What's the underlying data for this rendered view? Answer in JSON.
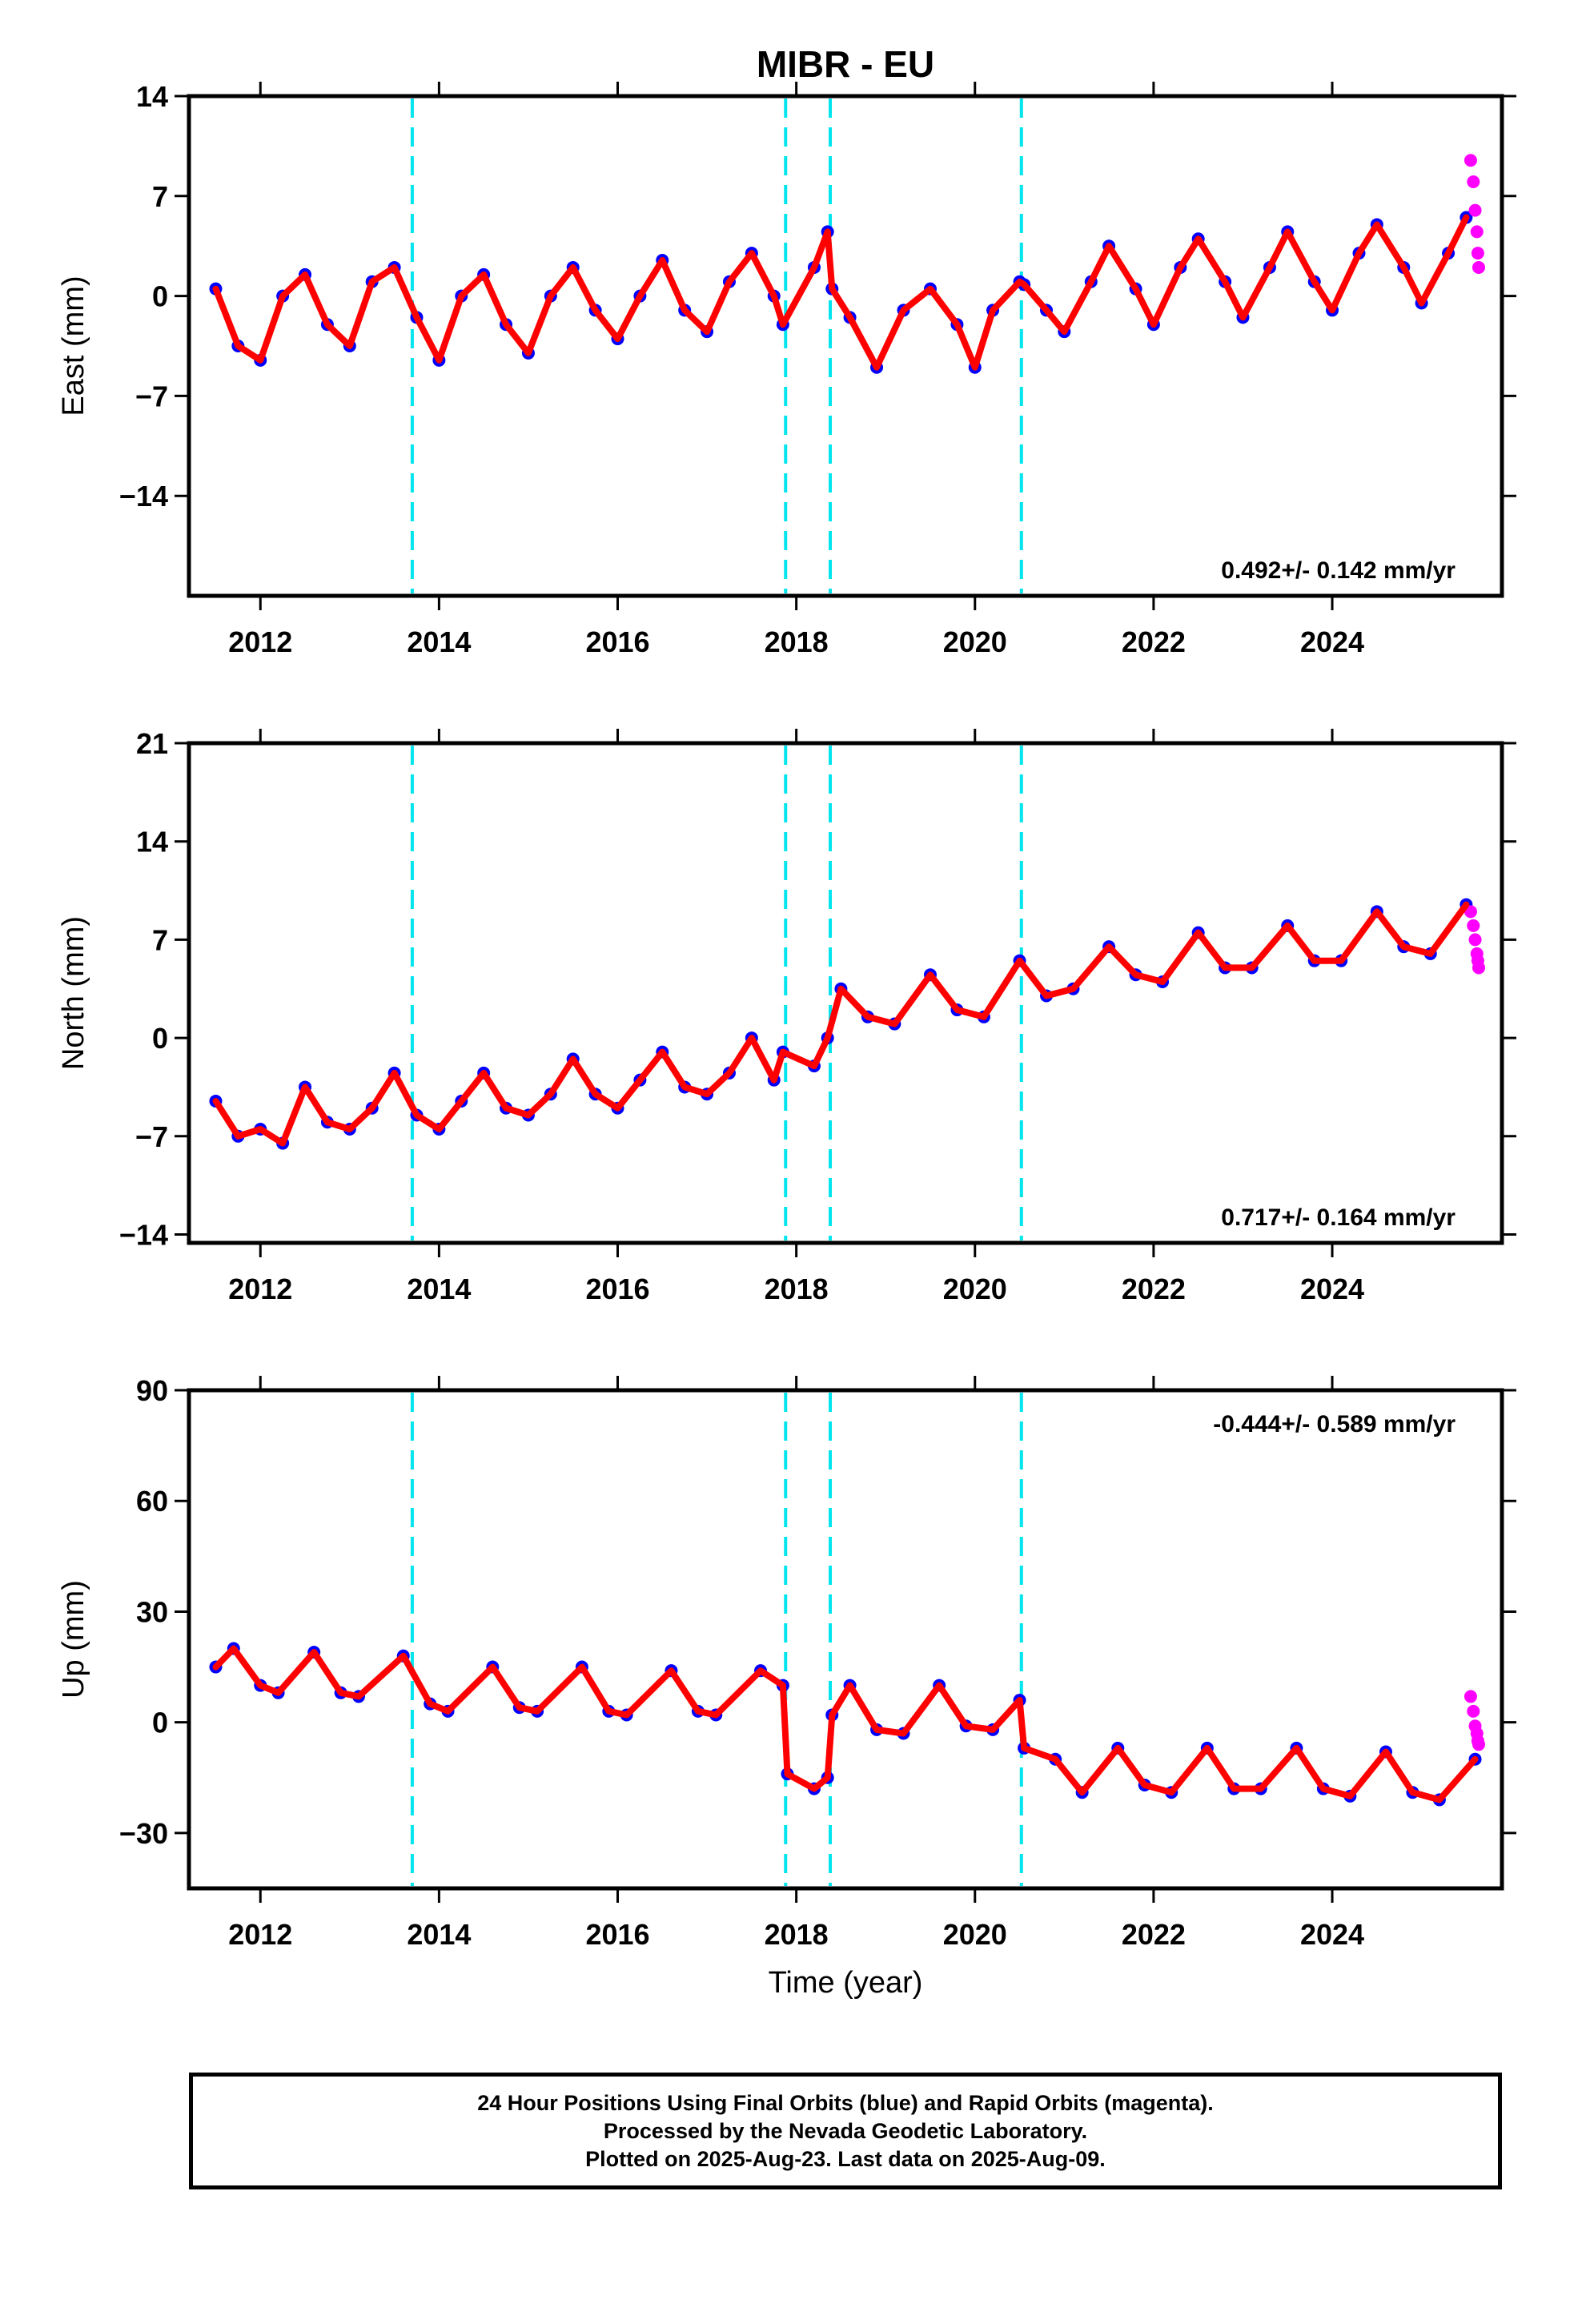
{
  "title": "MIBR - EU",
  "xlabel": "Time (year)",
  "colors": {
    "final_orbits": "#0000ff",
    "rapid_orbits": "#ff00ff",
    "model_fit": "#ff0000",
    "breaks": "#00e5ee"
  },
  "chart_data": [
    {
      "type": "scatter",
      "component": "East",
      "ylabel": "East (mm)",
      "ylim": [
        -21,
        14
      ],
      "yticks": [
        14,
        7,
        0,
        -7,
        -14
      ],
      "xlim": [
        2011.2,
        2025.9
      ],
      "xticks": [
        2012,
        2014,
        2016,
        2018,
        2020,
        2022,
        2024
      ],
      "rate_label": "0.492+/- 0.142 mm/yr",
      "breaks": [
        2013.7,
        2017.88,
        2018.38,
        2020.52
      ],
      "series": [
        {
          "name": "",
          "x": [
            2011.5,
            2011.75,
            2012.0,
            2012.25,
            2012.5,
            2012.75,
            2013.0,
            2013.25,
            2013.5,
            2013.75,
            2014.0,
            2014.25,
            2014.5,
            2014.75,
            2015.0,
            2015.25,
            2015.5,
            2015.75,
            2016.0,
            2016.25,
            2016.5,
            2016.75,
            2017.0,
            2017.25,
            2017.5,
            2017.75,
            2017.85,
            2018.2,
            2018.35,
            2018.4,
            2018.6,
            2018.9,
            2019.2,
            2019.5,
            2019.8,
            2020.0,
            2020.2,
            2020.5,
            2020.55,
            2020.8,
            2021.0,
            2021.3,
            2021.5,
            2021.8,
            2022.0,
            2022.3,
            2022.5,
            2022.8,
            2023.0,
            2023.3,
            2023.5,
            2023.8,
            2024.0,
            2024.3,
            2024.5,
            2024.8,
            2025.0,
            2025.3,
            2025.5
          ],
          "y": [
            0.5,
            -3.5,
            -4.5,
            0,
            1.5,
            -2,
            -3.5,
            1,
            2,
            -1.5,
            -4.5,
            0,
            1.5,
            -2,
            -4,
            0,
            2,
            -1,
            -3,
            0,
            2.5,
            -1,
            -2.5,
            1,
            3,
            0,
            -2,
            2,
            4.5,
            0.5,
            -1.5,
            -5,
            -1,
            0.5,
            -2,
            -5,
            -1,
            1,
            0.8,
            -1,
            -2.5,
            1,
            3.5,
            0.5,
            -2,
            2,
            4,
            1,
            -1.5,
            2,
            4.5,
            1,
            -1,
            3,
            5,
            2,
            -0.5,
            3,
            5.5
          ]
        },
        {
          "name": "",
          "x": [
            2025.55,
            2025.58,
            2025.6,
            2025.62,
            2025.63,
            2025.64
          ],
          "y": [
            9.5,
            8,
            6,
            4.5,
            3,
            2
          ]
        }
      ]
    },
    {
      "type": "scatter",
      "component": "North",
      "ylabel": "North (mm)",
      "ylim": [
        -14.6,
        21
      ],
      "yticks": [
        21,
        14,
        7,
        0,
        -7,
        -14
      ],
      "xlim": [
        2011.2,
        2025.9
      ],
      "xticks": [
        2012,
        2014,
        2016,
        2018,
        2020,
        2022,
        2024
      ],
      "rate_label": "0.717+/- 0.164 mm/yr",
      "breaks": [
        2013.7,
        2017.88,
        2018.38,
        2020.52
      ],
      "series": [
        {
          "name": "",
          "x": [
            2011.5,
            2011.75,
            2012.0,
            2012.25,
            2012.5,
            2012.75,
            2013.0,
            2013.25,
            2013.5,
            2013.75,
            2014.0,
            2014.25,
            2014.5,
            2014.75,
            2015.0,
            2015.25,
            2015.5,
            2015.75,
            2016.0,
            2016.25,
            2016.5,
            2016.75,
            2017.0,
            2017.25,
            2017.5,
            2017.75,
            2017.85,
            2018.2,
            2018.35,
            2018.5,
            2018.8,
            2019.1,
            2019.5,
            2019.8,
            2020.1,
            2020.5,
            2020.8,
            2021.1,
            2021.5,
            2021.8,
            2022.1,
            2022.5,
            2022.8,
            2023.1,
            2023.5,
            2023.8,
            2024.1,
            2024.5,
            2024.8,
            2025.1,
            2025.5
          ],
          "y": [
            -4.5,
            -7,
            -6.5,
            -7.5,
            -3.5,
            -6,
            -6.5,
            -5,
            -2.5,
            -5.5,
            -6.5,
            -4.5,
            -2.5,
            -5,
            -5.5,
            -4,
            -1.5,
            -4,
            -5,
            -3,
            -1,
            -3.5,
            -4,
            -2.5,
            0,
            -3,
            -1,
            -2,
            0,
            3.5,
            1.5,
            1,
            4.5,
            2,
            1.5,
            5.5,
            3,
            3.5,
            6.5,
            4.5,
            4,
            7.5,
            5,
            5,
            8,
            5.5,
            5.5,
            9,
            6.5,
            6,
            9.5
          ]
        },
        {
          "name": "",
          "x": [
            2025.55,
            2025.58,
            2025.6,
            2025.62,
            2025.63,
            2025.64
          ],
          "y": [
            9,
            8,
            7,
            6,
            5.5,
            5
          ]
        }
      ]
    },
    {
      "type": "scatter",
      "component": "Up",
      "ylabel": "Up (mm)",
      "ylim": [
        -45,
        90
      ],
      "yticks": [
        90,
        60,
        30,
        0,
        -30
      ],
      "xlim": [
        2011.2,
        2025.9
      ],
      "xticks": [
        2012,
        2014,
        2016,
        2018,
        2020,
        2022,
        2024
      ],
      "rate_label": "-0.444+/- 0.589 mm/yr",
      "breaks": [
        2013.7,
        2017.88,
        2018.38,
        2020.52
      ],
      "series": [
        {
          "name": "",
          "x": [
            2011.5,
            2011.7,
            2012.0,
            2012.2,
            2012.6,
            2012.9,
            2013.1,
            2013.6,
            2013.9,
            2014.1,
            2014.6,
            2014.9,
            2015.1,
            2015.6,
            2015.9,
            2016.1,
            2016.6,
            2016.9,
            2017.1,
            2017.6,
            2017.85,
            2017.9,
            2018.2,
            2018.35,
            2018.4,
            2018.6,
            2018.9,
            2019.2,
            2019.6,
            2019.9,
            2020.2,
            2020.5,
            2020.55,
            2020.9,
            2021.2,
            2021.6,
            2021.9,
            2022.2,
            2022.6,
            2022.9,
            2023.2,
            2023.6,
            2023.9,
            2024.2,
            2024.6,
            2024.9,
            2025.2,
            2025.6
          ],
          "y": [
            15,
            20,
            10,
            8,
            19,
            8,
            7,
            18,
            5,
            3,
            15,
            4,
            3,
            15,
            3,
            2,
            14,
            3,
            2,
            14,
            10,
            -14,
            -18,
            -15,
            2,
            10,
            -2,
            -3,
            10,
            -1,
            -2,
            6,
            -7,
            -10,
            -19,
            -7,
            -17,
            -19,
            -7,
            -18,
            -18,
            -7,
            -18,
            -20,
            -8,
            -19,
            -21,
            -10
          ]
        },
        {
          "name": "",
          "x": [
            2025.55,
            2025.58,
            2025.6,
            2025.62,
            2025.63,
            2025.64
          ],
          "y": [
            7,
            3,
            -1,
            -3,
            -5,
            -6
          ]
        }
      ]
    }
  ],
  "caption": {
    "line1": "24 Hour Positions Using Final Orbits (blue) and Rapid Orbits (magenta).",
    "line2": "Processed by the Nevada Geodetic Laboratory.",
    "line3": "Plotted on 2025-Aug-23. Last data on 2025-Aug-09."
  }
}
